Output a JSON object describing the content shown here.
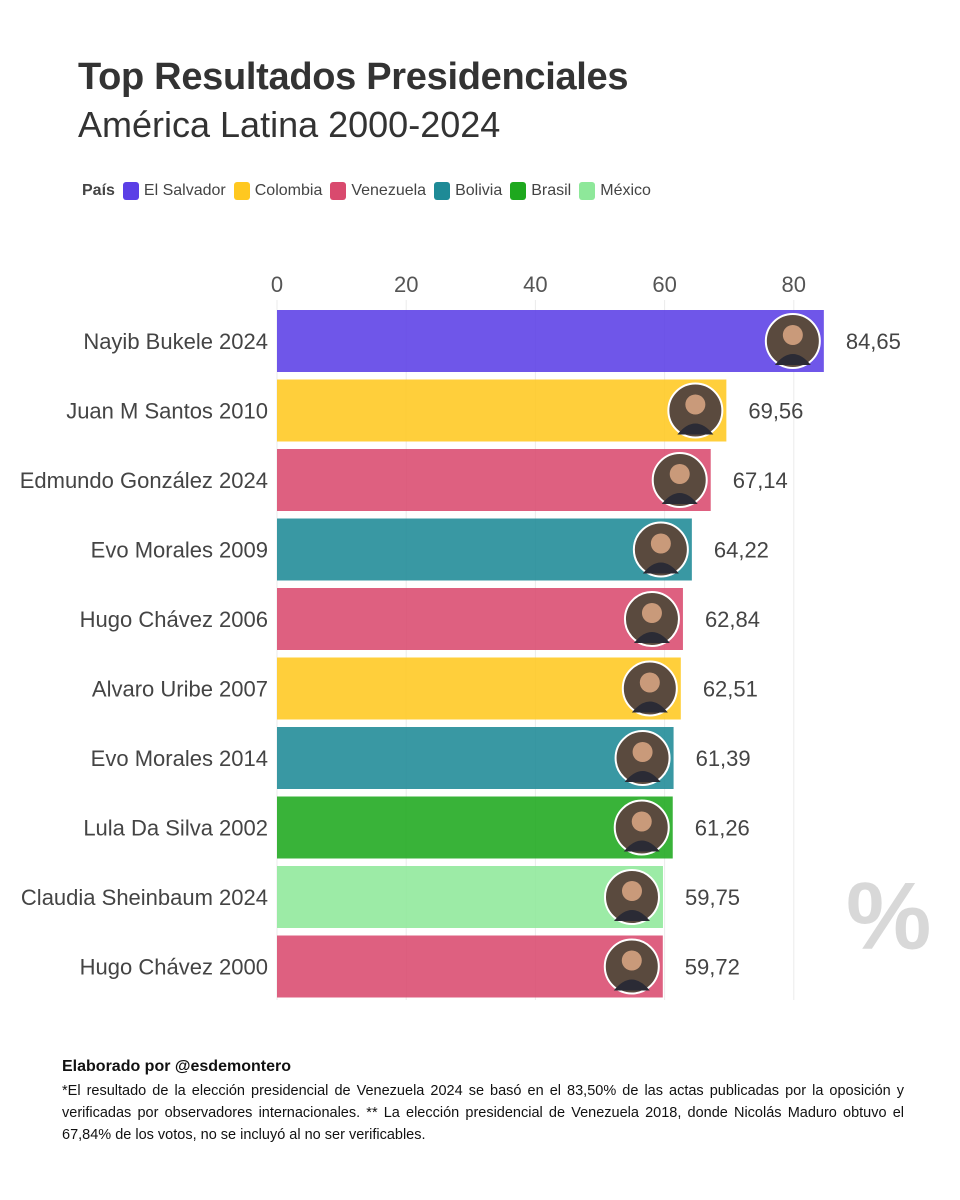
{
  "title": "Top Resultados Presidenciales",
  "subtitle": "América Latina 2000-2024",
  "legend": {
    "title": "País",
    "items": [
      {
        "label": "El Salvador",
        "color": "#5b3fe6"
      },
      {
        "label": "Colombia",
        "color": "#ffc820"
      },
      {
        "label": "Venezuela",
        "color": "#d94a6e"
      },
      {
        "label": "Bolivia",
        "color": "#1e8a96"
      },
      {
        "label": "Brasil",
        "color": "#1ea81e"
      },
      {
        "label": "México",
        "color": "#8ee89a"
      }
    ]
  },
  "chart_data": {
    "type": "bar",
    "orientation": "horizontal",
    "xlim": [
      0,
      85
    ],
    "xticks": [
      "0",
      "20",
      "40",
      "60",
      "80"
    ],
    "grid": true,
    "categories": [
      "Nayib Bukele 2024",
      "Juan M Santos 2010",
      "Edmundo González 2024",
      "Evo Morales 2009",
      "Hugo Chávez 2006",
      "Alvaro Uribe 2007",
      "Evo Morales 2014",
      "Lula Da Silva 2002",
      "Claudia Sheinbaum 2024",
      "Hugo Chávez 2000"
    ],
    "values": [
      84.65,
      69.56,
      67.14,
      64.22,
      62.84,
      62.51,
      61.39,
      61.26,
      59.75,
      59.72
    ],
    "value_labels": [
      "84,65",
      "69,56",
      "67,14",
      "64,22",
      "62,84",
      "62,51",
      "61,39",
      "61,26",
      "59,75",
      "59,72"
    ],
    "countries": [
      "El Salvador",
      "Colombia",
      "Venezuela",
      "Bolivia",
      "Venezuela",
      "Colombia",
      "Bolivia",
      "Brasil",
      "México",
      "Venezuela"
    ]
  },
  "watermark": "%",
  "footer": {
    "author": "Elaborado por @esdemontero",
    "note": "*El resultado de la elección presidencial de Venezuela 2024 se basó en el 83,50% de las actas publicadas por la oposición y verificadas por observadores internacionales. ** La elección presidencial de Venezuela 2018, donde Nicolás Maduro obtuvo el 67,84% de los votos, no se incluyó al no ser verificables."
  }
}
